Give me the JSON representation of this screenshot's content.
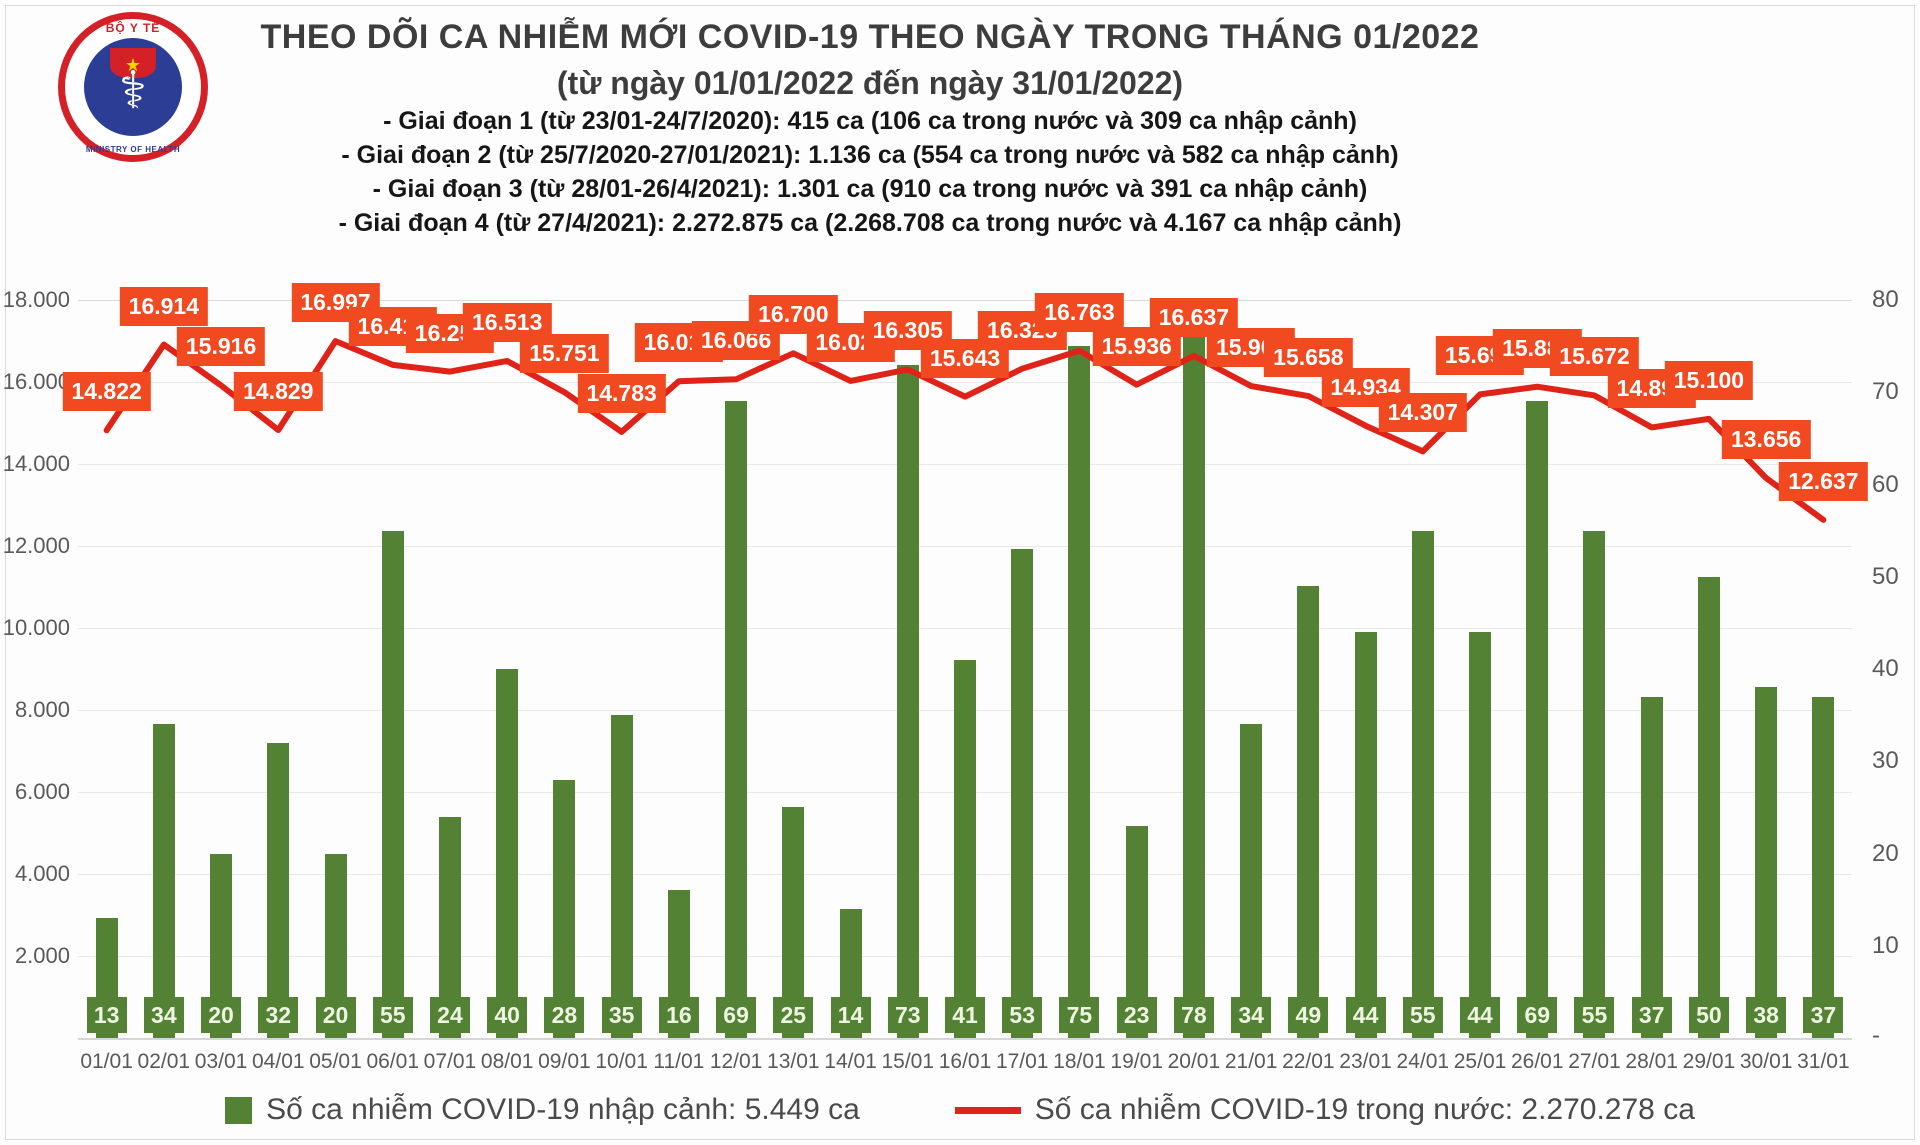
{
  "logo": {
    "top_text": "BỘ Y TẾ",
    "bottom_text": "MINISTRY OF HEALTH",
    "symbol": "⚕"
  },
  "header": {
    "title": "THEO DÕI CA NHIỄM MỚI COVID-19 THEO NGÀY TRONG THÁNG 01/2022",
    "subtitle": "(từ ngày 01/01/2022 đến ngày 31/01/2022)",
    "phases": [
      "- Giai đoạn 1 (từ 23/01-24/7/2020): 415 ca (106 ca trong nước và 309 ca nhập cảnh)",
      "- Giai đoạn 2 (từ 25/7/2020-27/01/2021): 1.136 ca (554 ca trong nước và 582 ca nhập cảnh)",
      "- Giai đoạn 3 (từ 28/01-26/4/2021): 1.301 ca (910 ca trong nước và 391 ca nhập cảnh)",
      "- Giai đoạn 4 (từ 27/4/2021): 2.272.875 ca (2.268.708 ca trong nước và 4.167 ca nhập cảnh)"
    ]
  },
  "chart_data": {
    "type": "combo-bar-line",
    "categories": [
      "01/01",
      "02/01",
      "03/01",
      "04/01",
      "05/01",
      "06/01",
      "07/01",
      "08/01",
      "09/01",
      "10/01",
      "11/01",
      "12/01",
      "13/01",
      "14/01",
      "15/01",
      "16/01",
      "17/01",
      "18/01",
      "19/01",
      "20/01",
      "21/01",
      "22/01",
      "23/01",
      "24/01",
      "25/01",
      "26/01",
      "27/01",
      "28/01",
      "29/01",
      "30/01",
      "31/01"
    ],
    "series": [
      {
        "name": "Số ca nhiễm COVID-19 nhập cảnh",
        "type": "bar",
        "axis": "right",
        "color": "#548235",
        "values": [
          13,
          34,
          20,
          32,
          20,
          55,
          24,
          40,
          28,
          35,
          16,
          69,
          25,
          14,
          73,
          41,
          53,
          75,
          23,
          78,
          34,
          49,
          44,
          55,
          44,
          69,
          55,
          37,
          50,
          38,
          37
        ]
      },
      {
        "name": "Số ca nhiễm COVID-19 trong nước",
        "type": "line",
        "axis": "left",
        "color": "#e02318",
        "label_color": "#f14a21",
        "values": [
          14822,
          16914,
          15916,
          14829,
          16997,
          16417,
          16254,
          16513,
          15751,
          14783,
          16019,
          16066,
          16700,
          16026,
          16305,
          15643,
          16325,
          16763,
          15936,
          16637,
          15901,
          15658,
          14934,
          14307,
          15699,
          15885,
          15672,
          14892,
          15100,
          13656,
          12637
        ],
        "labels": [
          "14.822",
          "16.914",
          "15.916",
          "14.829",
          "16.997",
          "16.417",
          "16.254",
          "16.513",
          "15.751",
          "14.783",
          "16.019",
          "16.066",
          "16.700",
          "16.026",
          "16.305",
          "15.643",
          "16.325",
          "16.763",
          "15.936",
          "16.637",
          "15.901",
          "15.658",
          "14.934",
          "14.307",
          "15.699",
          "15.885",
          "15.672",
          "14.892",
          "15.100",
          "13.656",
          "12.637"
        ]
      }
    ],
    "left_axis": {
      "min": 0,
      "max": 18000,
      "ticks": [
        "18.000",
        "16.000",
        "14.000",
        "12.000",
        "10.000",
        "8.000",
        "6.000",
        "4.000",
        "2.000"
      ]
    },
    "right_axis": {
      "min": 0,
      "max": 80,
      "ticks": [
        "80",
        "70",
        "60",
        "50",
        "40",
        "30",
        "20",
        "10"
      ],
      "zero_label": "-"
    },
    "grid": true,
    "legend_position": "bottom"
  },
  "legend": {
    "bar_label": "Số ca nhiễm COVID-19 nhập cảnh: 5.449 ca",
    "line_label": "Số ca nhiễm COVID-19 trong nước: 2.270.278 ca"
  }
}
